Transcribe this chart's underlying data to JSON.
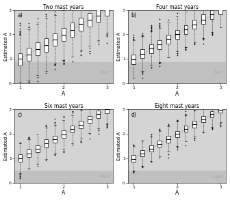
{
  "titles": [
    "Two mast years",
    "Four mast years",
    "Six mast years",
    "Eight mast years"
  ],
  "panel_labels": [
    "a)",
    "b)",
    "c)",
    "d)"
  ],
  "true_A_values": [
    1.0,
    1.2,
    1.4,
    1.6,
    1.8,
    2.0,
    2.2,
    2.4,
    2.6,
    2.8,
    3.0
  ],
  "xlabel": "A",
  "ylabel": "Estimated A",
  "ylim": [
    0.0,
    3.0
  ],
  "xlim": [
    0.87,
    3.13
  ],
  "null_region_max": [
    0.88,
    0.88,
    0.5,
    0.5
  ],
  "background_color": "#d4d4d4",
  "null_color": "#c0c0c0",
  "box_facecolor": "white",
  "box_edgecolor": "black",
  "median_color": "black",
  "diag_line_color": "#aaaaaa",
  "null_text_color": "#aaaaaa",
  "n_mast_years": [
    2,
    4,
    6,
    8
  ],
  "box_width": 0.09,
  "spread_scale": 0.55
}
